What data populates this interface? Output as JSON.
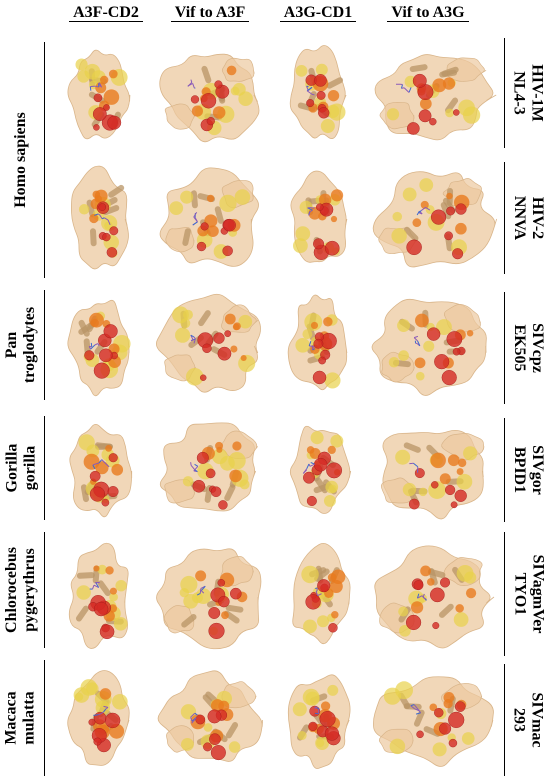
{
  "columns": [
    "A3F-CD2",
    "Vif to A3F",
    "A3G-CD1",
    "Vif to A3G"
  ],
  "species": [
    {
      "line1": "Homo sapiens",
      "line2": ""
    },
    {
      "line1": "Pan",
      "line2": "troglodytes"
    },
    {
      "line1": "Gorilla",
      "line2": "gorilla"
    },
    {
      "line1": "Chlorocebus",
      "line2": "pygerythrus"
    },
    {
      "line1": "Macaca",
      "line2": "mulatta"
    }
  ],
  "strains": [
    {
      "line1": "HIV-1M",
      "line2": "NL4-3"
    },
    {
      "line1": "HIV-2",
      "line2": "NNVA"
    },
    {
      "line1": "SIVcpz",
      "line2": "EK505"
    },
    {
      "line1": "SIVgor",
      "line2": "BPID1"
    },
    {
      "line1": "SIVagmVer",
      "line2": "TYO1"
    },
    {
      "line1": "SIVmac",
      "line2": "293"
    }
  ],
  "colors": {
    "surface": "#ecc9a0",
    "helix": "#b89466",
    "yellow": "#e8d24a",
    "orange": "#e87a1e",
    "red": "#d42a24",
    "purple": "#8a5ab8",
    "blue": "#3a6ad0"
  },
  "panel_content": "protein-surface-structure"
}
